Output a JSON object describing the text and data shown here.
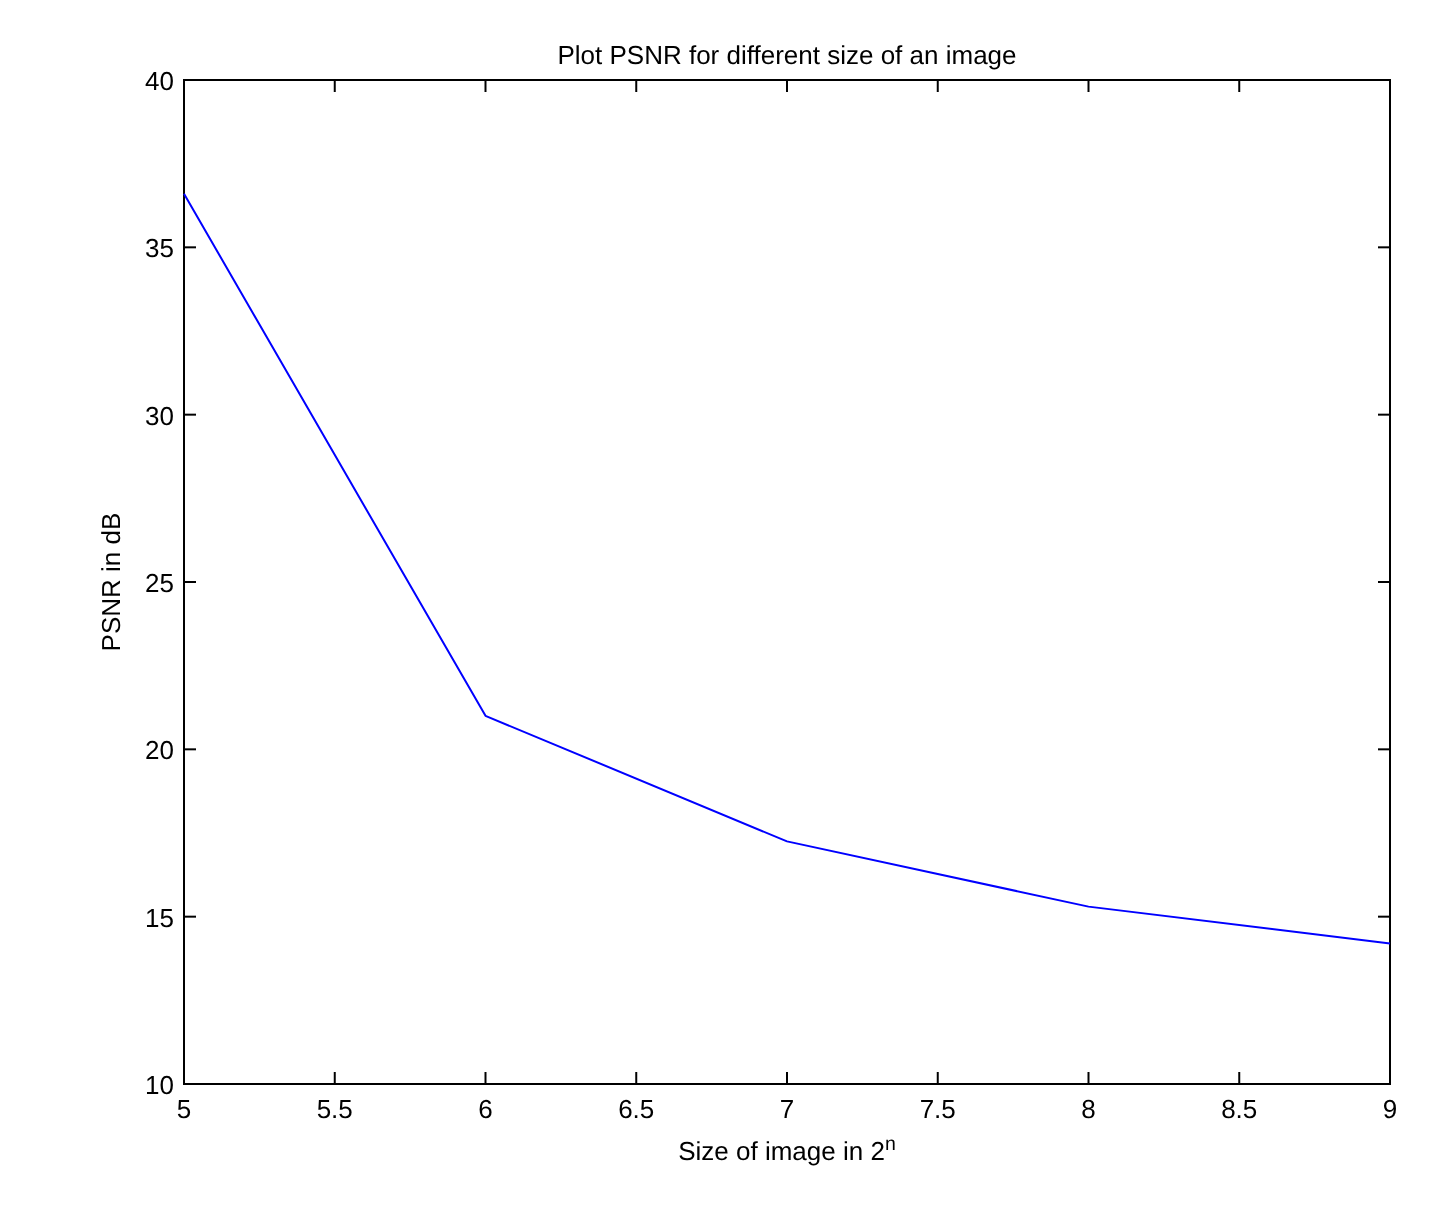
{
  "chart_data": {
    "type": "line",
    "title": "Plot PSNR for different size of an image",
    "xlabel": "Size of image in 2$^{n}$",
    "ylabel": "PSNR in dB",
    "x": [
      5,
      6,
      7,
      8,
      9
    ],
    "series": [
      {
        "color": "#0000ff",
        "values": [
          36.6,
          21.0,
          17.25,
          15.3,
          14.2
        ]
      }
    ],
    "xlim": [
      5,
      9
    ],
    "xticks": [
      5,
      5.5,
      6,
      6.5,
      7,
      7.5,
      8,
      8.5,
      9
    ],
    "ylim": [
      10,
      40
    ],
    "yticks": [
      10,
      15,
      20,
      25,
      30,
      35,
      40
    ],
    "grid": false,
    "marker": "none",
    "line_style": "solid"
  }
}
